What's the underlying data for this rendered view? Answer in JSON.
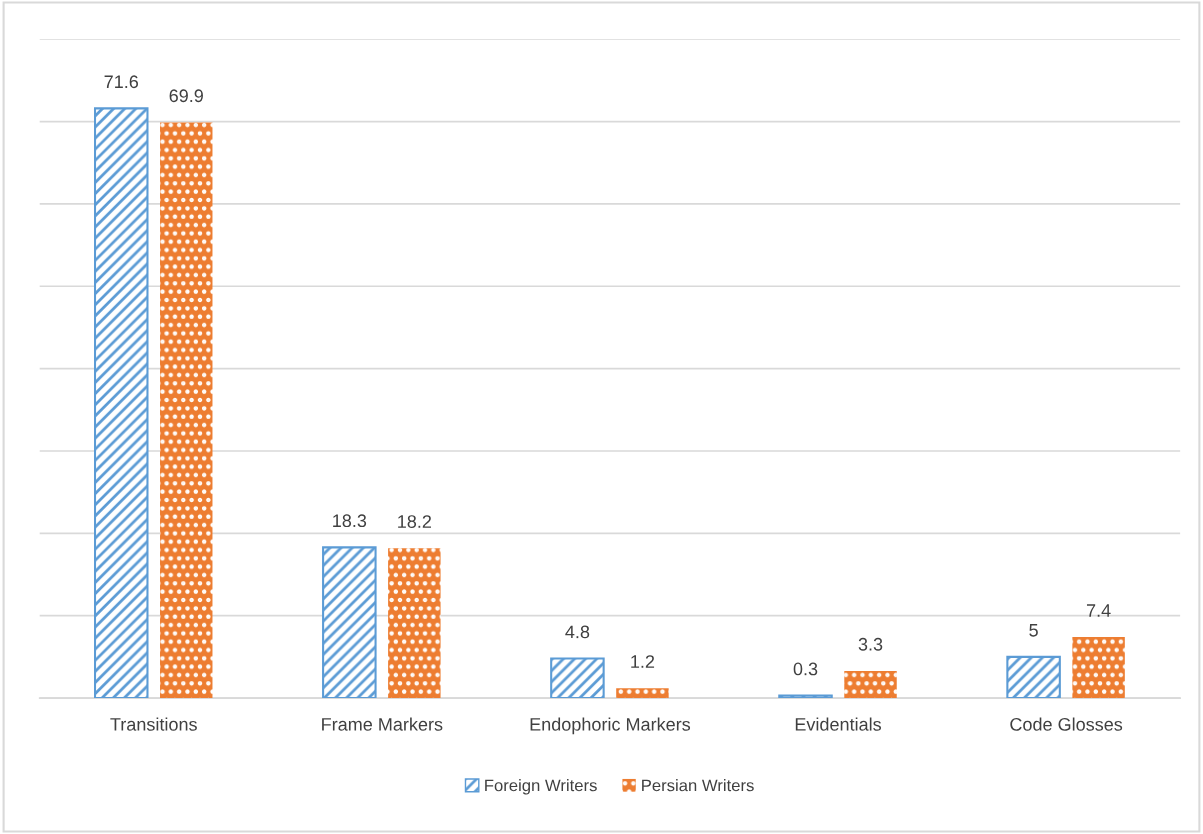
{
  "chart_data": {
    "type": "bar",
    "categories": [
      "Transitions",
      "Frame Markers",
      "Endophoric Markers",
      "Evidentials",
      "Code Glosses"
    ],
    "series": [
      {
        "name": "Foreign Writers",
        "color": "#5b9bd5",
        "values": [
          71.6,
          18.3,
          4.8,
          0.3,
          5
        ]
      },
      {
        "name": "Persian Writers",
        "color": "#ed7d31",
        "values": [
          69.9,
          18.2,
          1.2,
          3.3,
          7.4
        ]
      }
    ],
    "ylim": [
      0,
      80
    ],
    "yticks": [
      {
        "value": 0,
        "label": null
      },
      {
        "value": 10,
        "label": null
      },
      {
        "value": 20,
        "label": null
      },
      {
        "value": 30,
        "label": null
      },
      {
        "value": 40,
        "label": null
      },
      {
        "value": 50,
        "label": null
      },
      {
        "value": 60,
        "label": null
      },
      {
        "value": 70,
        "label": null
      },
      {
        "value": 80,
        "label": null
      }
    ],
    "grid": "y",
    "tick_labels": "x",
    "data_labels": true,
    "legend": "bottom"
  }
}
